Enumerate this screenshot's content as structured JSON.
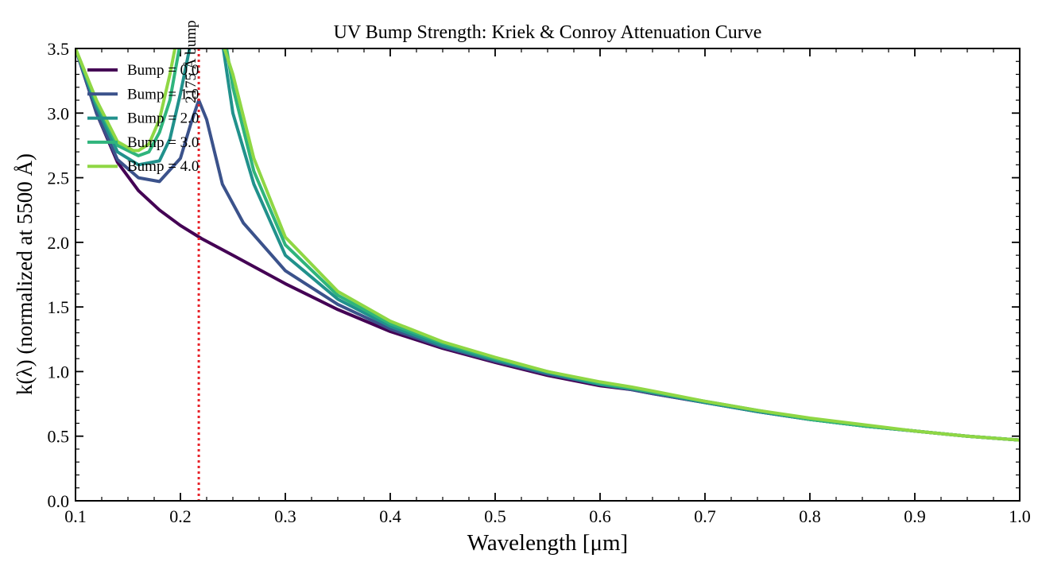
{
  "chart_data": {
    "type": "line",
    "title": "UV Bump Strength: Kriek & Conroy Attenuation Curve",
    "xlabel": "Wavelength [μm]",
    "ylabel": "k(λ) (normalized at 5500 Å)",
    "xlim": [
      0.1,
      1.0
    ],
    "ylim": [
      0.0,
      3.5
    ],
    "xticks": [
      "0.1",
      "0.2",
      "0.3",
      "0.4",
      "0.5",
      "0.6",
      "0.7",
      "0.8",
      "0.9",
      "1.0"
    ],
    "yticks": [
      "0.0",
      "0.5",
      "1.0",
      "1.5",
      "2.0",
      "2.5",
      "3.0",
      "3.5"
    ],
    "grid": false,
    "legend_position": "upper-left",
    "annotation": {
      "x": 0.2175,
      "label": "2175 Å bump",
      "color": "#e8232a"
    },
    "series": [
      {
        "name": "Bump = 0.0",
        "color": "#440154",
        "x": [
          0.1,
          0.12,
          0.14,
          0.16,
          0.18,
          0.2,
          0.22,
          0.25,
          0.3,
          0.35,
          0.4,
          0.45,
          0.5,
          0.55,
          0.6,
          0.63,
          0.65,
          0.7,
          0.75,
          0.8,
          0.85,
          0.9,
          0.95,
          1.0
        ],
        "y": [
          3.5,
          3.0,
          2.62,
          2.4,
          2.25,
          2.13,
          2.03,
          1.9,
          1.68,
          1.48,
          1.31,
          1.18,
          1.07,
          0.97,
          0.89,
          0.86,
          0.83,
          0.76,
          0.69,
          0.63,
          0.58,
          0.54,
          0.5,
          0.47
        ]
      },
      {
        "name": "Bump = 1.0",
        "color": "#3b528b",
        "x": [
          0.1,
          0.12,
          0.14,
          0.16,
          0.18,
          0.2,
          0.21,
          0.2175,
          0.225,
          0.24,
          0.26,
          0.3,
          0.35,
          0.4,
          0.45,
          0.5,
          0.55,
          0.6,
          0.63,
          0.65,
          0.7,
          0.75,
          0.8,
          0.85,
          0.9,
          0.95,
          1.0
        ],
        "y": [
          3.5,
          3.0,
          2.64,
          2.5,
          2.47,
          2.65,
          2.92,
          3.1,
          2.95,
          2.45,
          2.15,
          1.78,
          1.52,
          1.33,
          1.19,
          1.08,
          0.98,
          0.9,
          0.86,
          0.83,
          0.76,
          0.69,
          0.63,
          0.58,
          0.54,
          0.5,
          0.47
        ]
      },
      {
        "name": "Bump = 2.0",
        "color": "#21918c",
        "x": [
          0.1,
          0.12,
          0.14,
          0.16,
          0.18,
          0.19,
          0.2,
          0.21,
          0.24,
          0.25,
          0.27,
          0.3,
          0.35,
          0.4,
          0.45,
          0.5,
          0.55,
          0.6,
          0.63,
          0.65,
          0.7,
          0.75,
          0.8,
          0.85,
          0.9,
          0.95,
          1.0
        ],
        "y": [
          3.5,
          3.05,
          2.7,
          2.6,
          2.63,
          2.8,
          3.15,
          3.55,
          3.55,
          3.0,
          2.45,
          1.9,
          1.56,
          1.35,
          1.2,
          1.09,
          0.99,
          0.9,
          0.87,
          0.84,
          0.76,
          0.69,
          0.63,
          0.58,
          0.54,
          0.5,
          0.47
        ]
      },
      {
        "name": "Bump = 3.0",
        "color": "#2fb47c",
        "x": [
          0.1,
          0.12,
          0.14,
          0.16,
          0.17,
          0.18,
          0.19,
          0.2,
          0.243,
          0.25,
          0.27,
          0.3,
          0.35,
          0.4,
          0.45,
          0.5,
          0.55,
          0.6,
          0.63,
          0.65,
          0.7,
          0.75,
          0.8,
          0.85,
          0.9,
          0.95,
          1.0
        ],
        "y": [
          3.5,
          3.08,
          2.75,
          2.67,
          2.7,
          2.85,
          3.1,
          3.55,
          3.55,
          3.2,
          2.55,
          1.98,
          1.59,
          1.37,
          1.22,
          1.1,
          1.0,
          0.91,
          0.87,
          0.84,
          0.77,
          0.7,
          0.63,
          0.58,
          0.54,
          0.5,
          0.47
        ]
      },
      {
        "name": "Bump = 4.0",
        "color": "#8fd744",
        "x": [
          0.1,
          0.12,
          0.14,
          0.155,
          0.16,
          0.17,
          0.18,
          0.19,
          0.196,
          0.24,
          0.25,
          0.27,
          0.3,
          0.35,
          0.4,
          0.45,
          0.5,
          0.55,
          0.6,
          0.63,
          0.65,
          0.7,
          0.75,
          0.8,
          0.85,
          0.9,
          0.95,
          1.0
        ],
        "y": [
          3.5,
          3.1,
          2.78,
          2.71,
          2.71,
          2.76,
          2.95,
          3.3,
          3.55,
          3.55,
          3.3,
          2.65,
          2.04,
          1.62,
          1.39,
          1.23,
          1.11,
          1.0,
          0.92,
          0.88,
          0.85,
          0.77,
          0.7,
          0.64,
          0.59,
          0.54,
          0.5,
          0.47
        ]
      }
    ]
  }
}
